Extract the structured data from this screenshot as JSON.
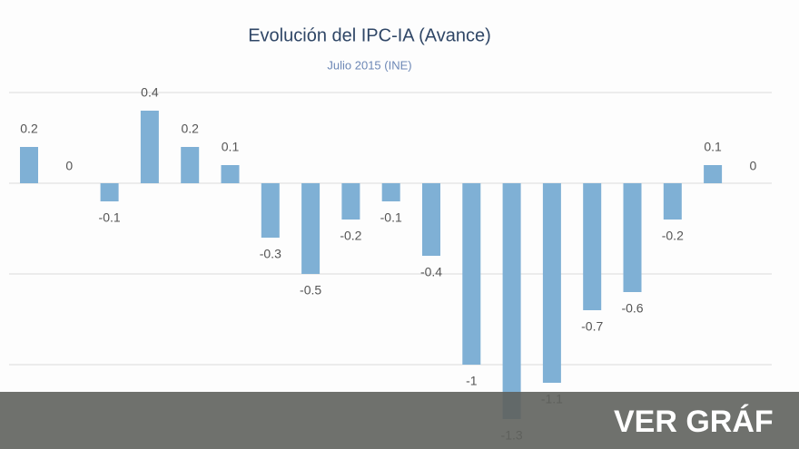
{
  "chart_data": {
    "type": "bar",
    "title": "Evolución del IPC-IA (Avance)",
    "subtitle": "Julio 2015 (INE)",
    "values": [
      0.2,
      0,
      -0.1,
      0.4,
      0.2,
      0.1,
      -0.3,
      -0.5,
      -0.2,
      -0.1,
      -0.4,
      -1,
      -1.3,
      -1.1,
      -0.7,
      -0.6,
      -0.2,
      0.1,
      0
    ],
    "color": "#7fb0d5",
    "ylim": [
      -1.4,
      0.5
    ],
    "yticks": [
      0.5,
      0,
      -0.5,
      -1
    ],
    "grid": true
  },
  "overlay": {
    "button": "VER GRÁF"
  }
}
